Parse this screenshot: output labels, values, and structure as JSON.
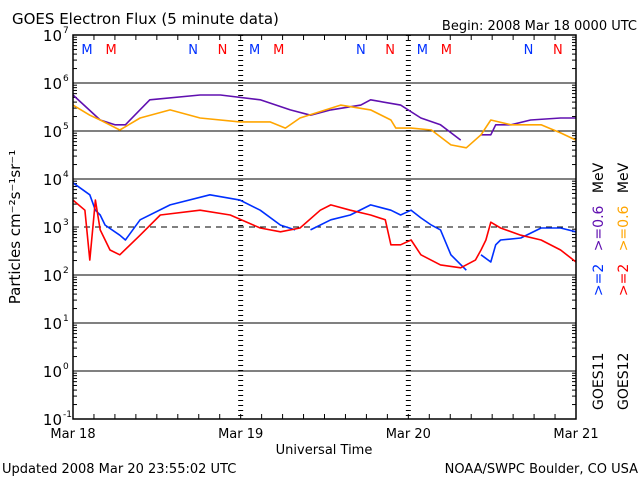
{
  "chart_data": {
    "type": "line",
    "title": "GOES Electron Flux (5 minute data)",
    "begin_label": "Begin: 2008 Mar 18 0000 UTC",
    "xlabel": "Universal Time",
    "ylabel": "Particles cm⁻²s⁻¹sr⁻¹",
    "x_units": "hours since 2008 Mar 18 0000 UTC",
    "xlim": [
      0,
      72
    ],
    "x_ticks": [
      {
        "hour": 0,
        "label": "Mar 18"
      },
      {
        "hour": 24,
        "label": "Mar 19"
      },
      {
        "hour": 48,
        "label": "Mar 20"
      },
      {
        "hour": 72,
        "label": "Mar 21"
      }
    ],
    "y_scale": "log10",
    "ylim_log10": [
      -1,
      7
    ],
    "y_ticks": [
      {
        "exp": 7,
        "base": "10",
        "sup": "7"
      },
      {
        "exp": 6,
        "base": "10",
        "sup": "6"
      },
      {
        "exp": 5,
        "base": "10",
        "sup": "5"
      },
      {
        "exp": 4,
        "base": "10",
        "sup": "4"
      },
      {
        "exp": 3,
        "base": "10",
        "sup": "3"
      },
      {
        "exp": 2,
        "base": "10",
        "sup": "2"
      },
      {
        "exp": 1,
        "base": "10",
        "sup": "1"
      },
      {
        "exp": 0,
        "base": "10",
        "sup": "0"
      },
      {
        "exp": -1,
        "base": "10",
        "sup": "-1"
      }
    ],
    "solid_gridlines_log10": [
      6,
      5,
      4,
      2,
      1,
      0
    ],
    "dashed_threshold_log10": 3,
    "series": [
      {
        "name": "GOES11 >=0.6 MeV",
        "color": "#6010b0",
        "points_hour_log10": [
          [
            0,
            5.75
          ],
          [
            3.9,
            5.23
          ],
          [
            6.0,
            5.13
          ],
          [
            7.5,
            5.13
          ],
          [
            11.0,
            5.65
          ],
          [
            18.2,
            5.75
          ],
          [
            21.1,
            5.75
          ],
          [
            26.8,
            5.65
          ],
          [
            31.1,
            5.44
          ],
          [
            34.0,
            5.33
          ],
          [
            36.9,
            5.44
          ],
          [
            41.2,
            5.54
          ],
          [
            42.6,
            5.65
          ],
          [
            46.9,
            5.54
          ],
          [
            49.8,
            5.27
          ],
          [
            52.6,
            5.13
          ],
          [
            55.5,
            4.81
          ],
          null,
          [
            58.4,
            4.92
          ],
          [
            59.8,
            4.92
          ],
          [
            60.5,
            5.13
          ],
          [
            62.7,
            5.13
          ],
          [
            65.5,
            5.23
          ],
          [
            69.8,
            5.27
          ],
          [
            72,
            5.27
          ]
        ]
      },
      {
        "name": "GOES12 >=0.6 MeV",
        "color": "#ffa500",
        "points_hour_log10": [
          [
            0,
            5.54
          ],
          [
            2.4,
            5.33
          ],
          [
            3.9,
            5.23
          ],
          [
            6.7,
            5.02
          ],
          [
            9.6,
            5.27
          ],
          [
            13.9,
            5.44
          ],
          [
            18.2,
            5.27
          ],
          [
            23.9,
            5.19
          ],
          [
            28.2,
            5.19
          ],
          [
            30.4,
            5.06
          ],
          [
            32.5,
            5.27
          ],
          [
            38.3,
            5.54
          ],
          [
            42.6,
            5.44
          ],
          [
            45.5,
            5.23
          ],
          [
            46.2,
            5.06
          ],
          [
            48.4,
            5.06
          ],
          [
            51.3,
            5.02
          ],
          [
            54.1,
            4.71
          ],
          [
            56.3,
            4.65
          ],
          [
            58.4,
            4.92
          ],
          [
            59.8,
            5.23
          ],
          [
            62.7,
            5.13
          ],
          [
            67.0,
            5.13
          ],
          [
            69.8,
            4.96
          ],
          [
            72,
            4.81
          ]
        ]
      },
      {
        "name": "GOES11 >=2 MeV",
        "color": "#0030ff",
        "points_hour_log10": [
          [
            0,
            3.92
          ],
          [
            2.4,
            3.67
          ],
          [
            3.2,
            3.35
          ],
          [
            3.9,
            3.25
          ],
          [
            4.6,
            3.04
          ],
          [
            6.7,
            2.83
          ],
          [
            7.5,
            2.73
          ],
          [
            9.6,
            3.15
          ],
          [
            13.9,
            3.46
          ],
          [
            19.6,
            3.67
          ],
          [
            23.9,
            3.56
          ],
          [
            26.8,
            3.35
          ],
          [
            29.7,
            3.04
          ],
          [
            31.8,
            2.94
          ],
          null,
          [
            34.0,
            2.94
          ],
          [
            36.9,
            3.15
          ],
          [
            39.7,
            3.25
          ],
          [
            42.6,
            3.46
          ],
          [
            45.5,
            3.35
          ],
          [
            46.9,
            3.25
          ],
          [
            48.4,
            3.35
          ],
          [
            49.8,
            3.19
          ],
          [
            51.3,
            3.04
          ],
          [
            52.6,
            2.94
          ],
          [
            54.1,
            2.42
          ],
          [
            56.3,
            2.1
          ],
          null,
          [
            58.4,
            2.42
          ],
          [
            59.8,
            2.27
          ],
          [
            60.5,
            2.63
          ],
          [
            61.2,
            2.73
          ],
          [
            64.1,
            2.77
          ],
          [
            67.0,
            2.98
          ],
          [
            69.8,
            2.98
          ],
          [
            72,
            2.9
          ]
        ]
      },
      {
        "name": "GOES12 >=2 MeV",
        "color": "#ff0000",
        "points_hour_log10": [
          [
            0,
            3.56
          ],
          [
            1.7,
            3.35
          ],
          [
            2.4,
            2.31
          ],
          [
            3.2,
            3.56
          ],
          [
            3.9,
            2.94
          ],
          [
            5.3,
            2.52
          ],
          [
            6.7,
            2.42
          ],
          [
            9.6,
            2.83
          ],
          [
            12.5,
            3.25
          ],
          [
            18.2,
            3.35
          ],
          [
            22.5,
            3.25
          ],
          [
            26.8,
            2.98
          ],
          [
            29.7,
            2.9
          ],
          [
            32.5,
            2.98
          ],
          [
            35.4,
            3.35
          ],
          [
            36.9,
            3.46
          ],
          [
            39.7,
            3.35
          ],
          [
            42.6,
            3.25
          ],
          [
            44.7,
            3.15
          ],
          [
            45.5,
            2.63
          ],
          [
            46.9,
            2.63
          ],
          [
            48.4,
            2.73
          ],
          [
            49.8,
            2.42
          ],
          [
            52.6,
            2.21
          ],
          [
            55.5,
            2.15
          ],
          [
            57.6,
            2.31
          ],
          [
            58.4,
            2.52
          ],
          [
            59.1,
            2.73
          ],
          [
            59.8,
            3.1
          ],
          [
            61.2,
            2.98
          ],
          [
            64.1,
            2.83
          ],
          [
            67.0,
            2.73
          ],
          [
            69.8,
            2.52
          ],
          [
            72,
            2.27
          ]
        ]
      }
    ],
    "markers": [
      {
        "label": "M",
        "color": "#0030ff",
        "hours": [
          2.0,
          26.0,
          50.0
        ]
      },
      {
        "label": "M",
        "color": "#ff0000",
        "hours": [
          5.45,
          29.45,
          53.45
        ]
      },
      {
        "label": "N",
        "color": "#0030ff",
        "hours": [
          17.2,
          41.2,
          65.2
        ]
      },
      {
        "label": "N",
        "color": "#ff0000",
        "hours": [
          21.4,
          45.4,
          69.4
        ]
      }
    ],
    "legend": {
      "placement": "right",
      "goes11": {
        "sat": "GOES11",
        "e2": ">=2",
        "e06": ">=0.6",
        "unit": "MeV",
        "e2_color": "#0030ff",
        "e06_color": "#6010b0"
      },
      "goes12": {
        "sat": "GOES12",
        "e2": ">=2",
        "e06": ">=0.6",
        "unit": "MeV",
        "e2_color": "#ff0000",
        "e06_color": "#ffa500"
      }
    }
  },
  "footer": {
    "updated": "Updated 2008 Mar 20 23:55:02 UTC",
    "source": "NOAA/SWPC Boulder, CO USA"
  }
}
